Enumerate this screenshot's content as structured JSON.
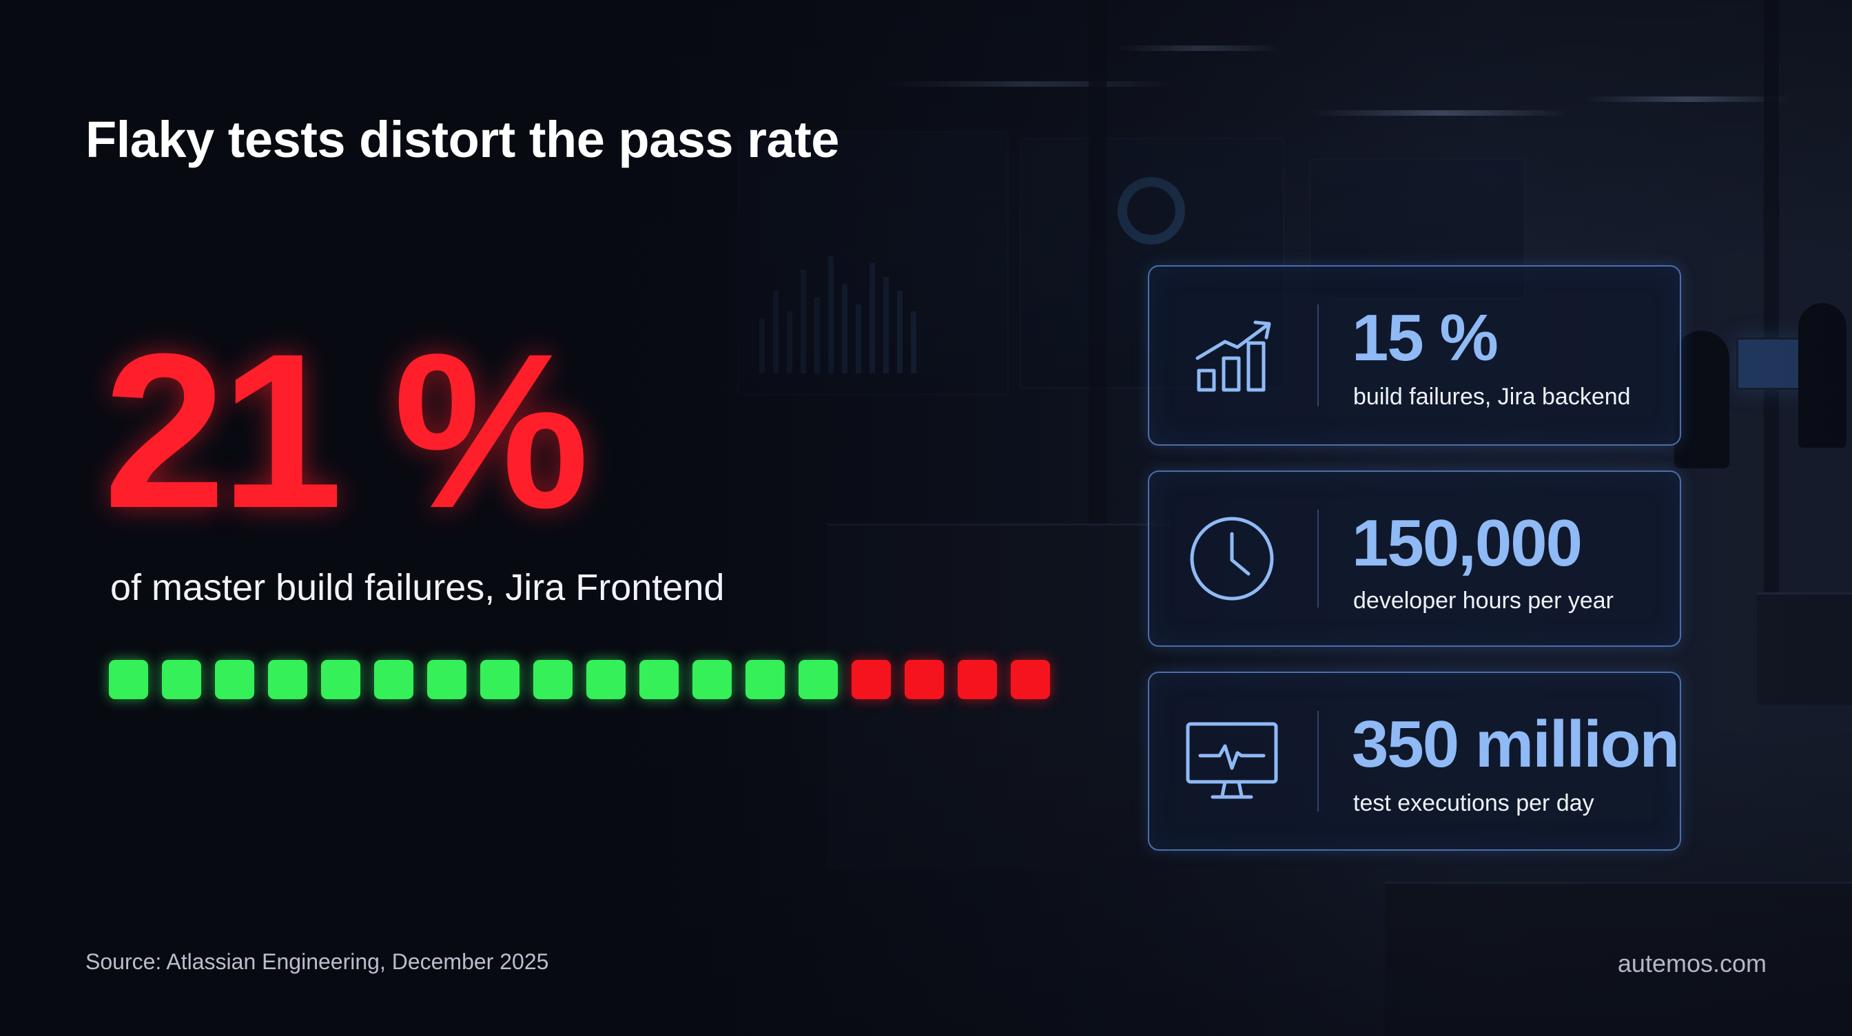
{
  "title": "Flaky tests distort the pass rate",
  "headline_stat": {
    "value": "21 %",
    "caption": "of master build failures, Jira Frontend"
  },
  "pass_fail_bar": {
    "passed_cells": 14,
    "failed_cells": 4,
    "pass_color": "#36f05a",
    "fail_color": "#f5141e"
  },
  "stat_cards": [
    {
      "icon": "growth-chart-icon",
      "value": "15 %",
      "label": "build failures, Jira backend"
    },
    {
      "icon": "clock-icon",
      "value": "150,000",
      "label": "developer hours per year"
    },
    {
      "icon": "monitor-heartbeat-icon",
      "value": "350 million",
      "label": "test executions per day"
    }
  ],
  "source": "Source: Atlassian Engineering, December 2025",
  "brand": "autemos.com",
  "colors": {
    "accent_red": "#ff1f2b",
    "accent_blue": "#8fbaf5",
    "card_border": "#4a6fa8"
  }
}
